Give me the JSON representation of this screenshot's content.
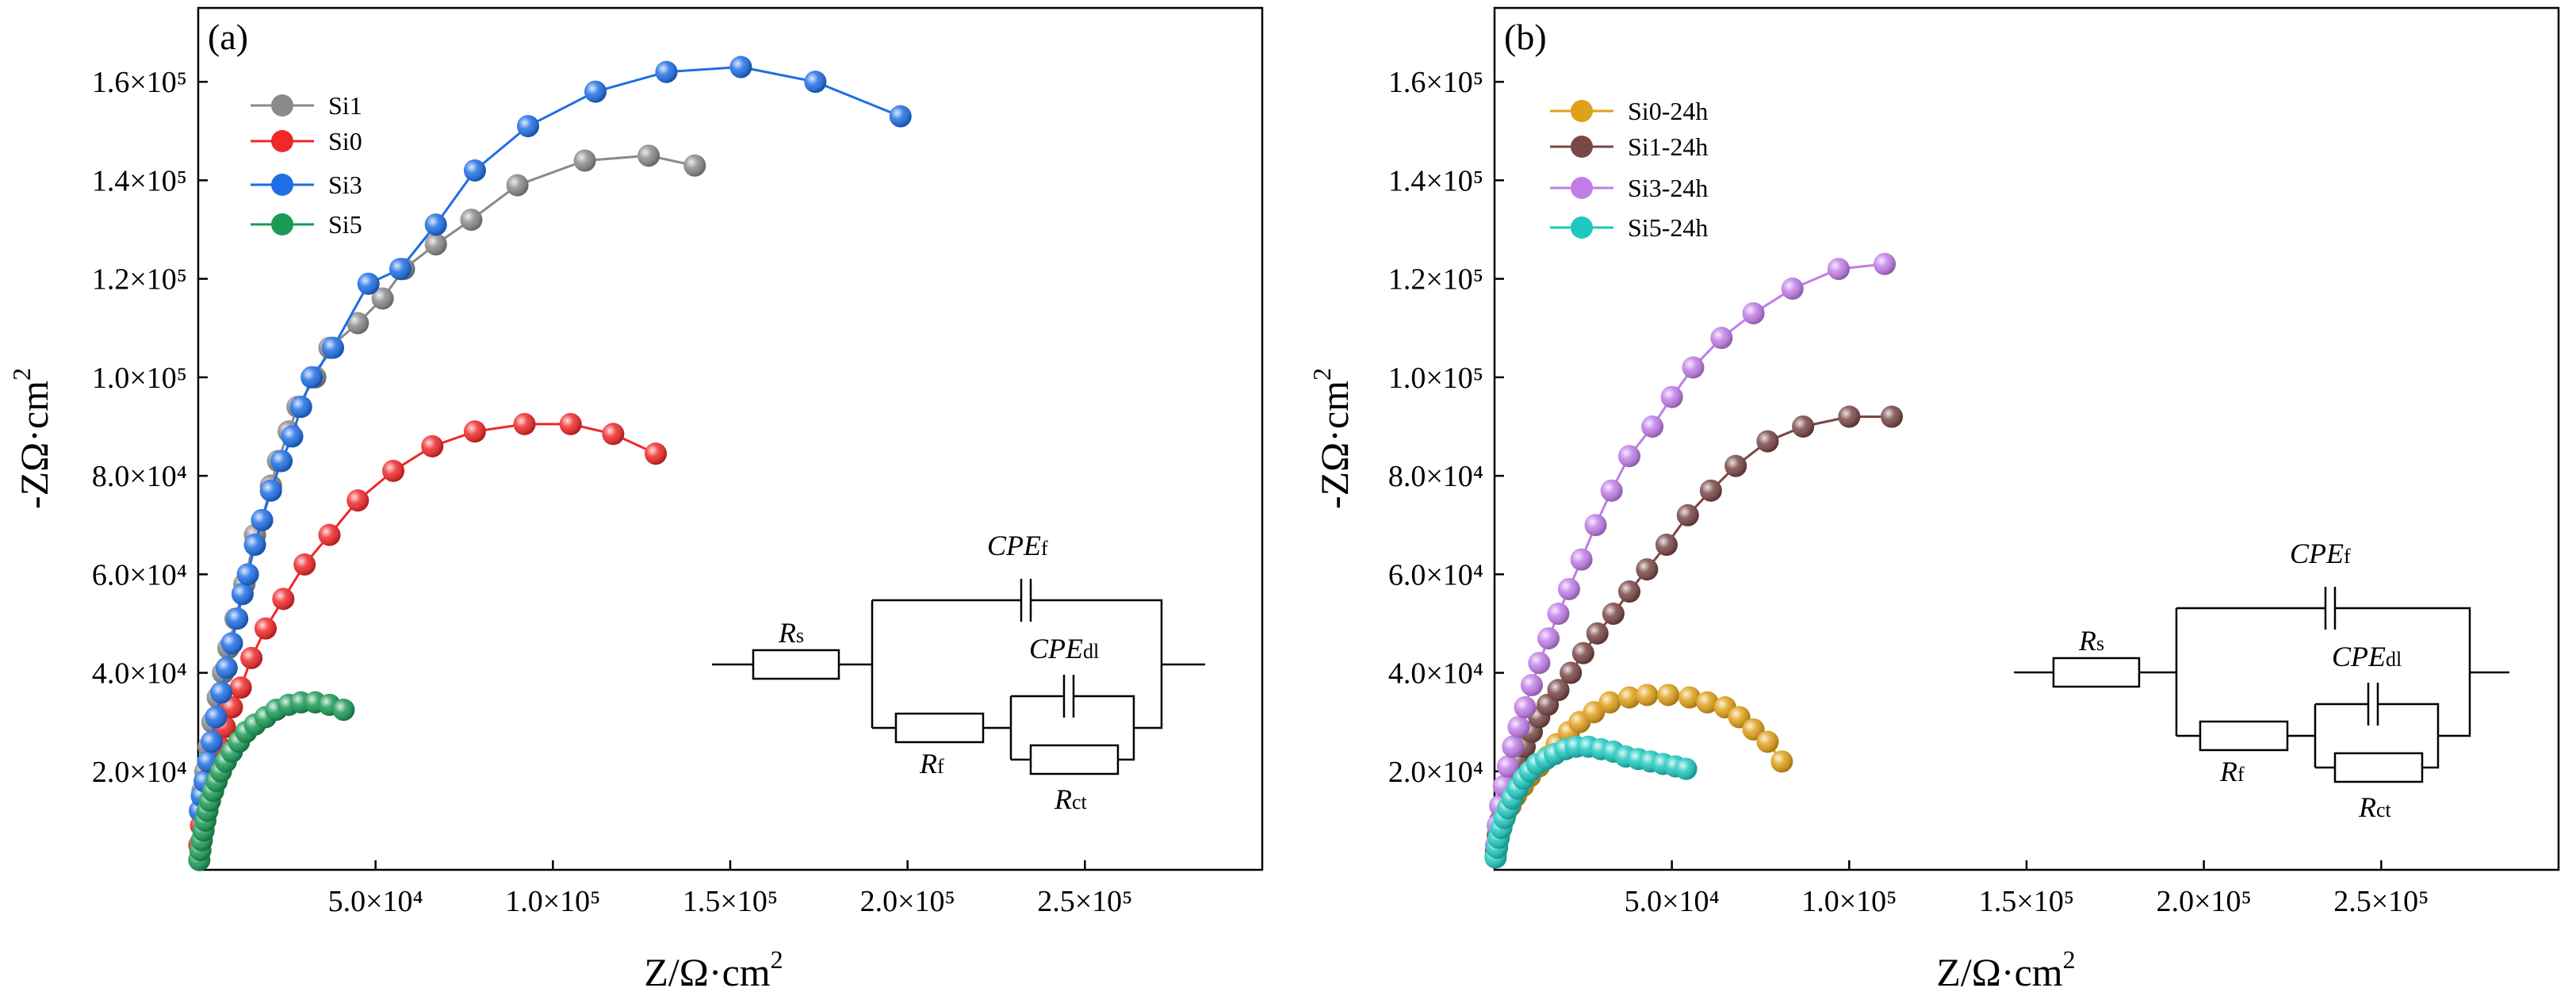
{
  "chart_data": [
    {
      "type": "scatter",
      "panel_label": "(a)",
      "xlabel": "Z/Ω·cm²",
      "ylabel": "-ZΩ·cm²",
      "xlim": [
        0,
        300000
      ],
      "ylim": [
        0,
        175000
      ],
      "xticks": [
        50000,
        100000,
        150000,
        200000,
        250000
      ],
      "xtick_labels": [
        "5.0×10⁴",
        "1.0×10⁵",
        "1.5×10⁵",
        "2.0×10⁵",
        "2.5×10⁵"
      ],
      "yticks": [
        20000,
        40000,
        60000,
        80000,
        100000,
        120000,
        140000,
        160000
      ],
      "ytick_labels": [
        "2.0×10⁴",
        "4.0×10⁴",
        "6.0×10⁴",
        "8.0×10⁴",
        "1.0×10⁵",
        "1.2×10⁵",
        "1.4×10⁵",
        "1.6×10⁵"
      ],
      "legend_position": "top-left",
      "series": [
        {
          "name": "Si1",
          "color": "#8a8a8a",
          "points": [
            [
              500,
              12000
            ],
            [
              1200,
              16000
            ],
            [
              2000,
              20000
            ],
            [
              3000,
              25000
            ],
            [
              4000,
              30000
            ],
            [
              5500,
              35000
            ],
            [
              7000,
              40000
            ],
            [
              8500,
              45000
            ],
            [
              10500,
              51000
            ],
            [
              13000,
              58000
            ],
            [
              16000,
              68000
            ],
            [
              18000,
              71000
            ],
            [
              20500,
              78000
            ],
            [
              22500,
              83000
            ],
            [
              25500,
              89000
            ],
            [
              28000,
              94000
            ],
            [
              33000,
              100000
            ],
            [
              37000,
              106000
            ],
            [
              45000,
              111000
            ],
            [
              52000,
              116000
            ],
            [
              58000,
              122000
            ],
            [
              67000,
              127000
            ],
            [
              77000,
              132000
            ],
            [
              90000,
              139000
            ],
            [
              109000,
              144000
            ],
            [
              127000,
              145000
            ],
            [
              140000,
              143000
            ]
          ]
        },
        {
          "name": "Si0",
          "color": "#f02828",
          "points": [
            [
              300,
              5000
            ],
            [
              800,
              9000
            ],
            [
              1500,
              13000
            ],
            [
              2500,
              16000
            ],
            [
              3500,
              19000
            ],
            [
              4500,
              22000
            ],
            [
              6000,
              25000
            ],
            [
              7500,
              29000
            ],
            [
              9500,
              33000
            ],
            [
              12000,
              37000
            ],
            [
              15000,
              43000
            ],
            [
              19000,
              49000
            ],
            [
              24000,
              55000
            ],
            [
              30000,
              62000
            ],
            [
              37000,
              68000
            ],
            [
              45000,
              75000
            ],
            [
              55000,
              81000
            ],
            [
              66000,
              86000
            ],
            [
              78000,
              89000
            ],
            [
              92000,
              90500
            ],
            [
              105000,
              90500
            ],
            [
              117000,
              88500
            ],
            [
              129000,
              84500
            ]
          ]
        },
        {
          "name": "Si3",
          "color": "#1e6ee6",
          "points": [
            [
              500,
              12000
            ],
            [
              1000,
              15000
            ],
            [
              1800,
              18000
            ],
            [
              2800,
              22000
            ],
            [
              3800,
              26000
            ],
            [
              5000,
              31000
            ],
            [
              6500,
              36000
            ],
            [
              8000,
              41000
            ],
            [
              9500,
              46000
            ],
            [
              11000,
              51000
            ],
            [
              12500,
              56000
            ],
            [
              14000,
              60000
            ],
            [
              16000,
              66000
            ],
            [
              18000,
              71000
            ],
            [
              20500,
              77000
            ],
            [
              23500,
              83000
            ],
            [
              26500,
              88000
            ],
            [
              29000,
              94000
            ],
            [
              32000,
              100000
            ],
            [
              38000,
              106000
            ],
            [
              48000,
              119000
            ],
            [
              57000,
              122000
            ],
            [
              67000,
              131000
            ],
            [
              78000,
              142000
            ],
            [
              93000,
              151000
            ],
            [
              112000,
              158000
            ],
            [
              132000,
              162000
            ],
            [
              153000,
              163000
            ],
            [
              174000,
              160000
            ],
            [
              198000,
              153000
            ]
          ]
        },
        {
          "name": "Si5",
          "color": "#1a9a55",
          "points": [
            [
              300,
              2000
            ],
            [
              600,
              4000
            ],
            [
              1000,
              6000
            ],
            [
              1500,
              8000
            ],
            [
              2000,
              10000
            ],
            [
              2600,
              12000
            ],
            [
              3300,
              14000
            ],
            [
              4200,
              16000
            ],
            [
              5200,
              18000
            ],
            [
              6400,
              20000
            ],
            [
              7800,
              22000
            ],
            [
              9500,
              24000
            ],
            [
              11500,
              26000
            ],
            [
              13500,
              28000
            ],
            [
              16000,
              29500
            ],
            [
              19000,
              31000
            ],
            [
              22000,
              32500
            ],
            [
              25500,
              33500
            ],
            [
              29000,
              34000
            ],
            [
              33000,
              34000
            ],
            [
              37000,
              33500
            ],
            [
              41000,
              32500
            ]
          ]
        }
      ],
      "circuit": {
        "rs": "R",
        "rs_sub": "s",
        "rf": "R",
        "rf_sub": "f",
        "rct": "R",
        "rct_sub": "ct",
        "cpef": "CPE",
        "cpef_sub": "f",
        "cpedl": "CPE",
        "cpedl_sub": "dl"
      }
    },
    {
      "type": "scatter",
      "panel_label": "(b)",
      "xlabel": "Z/Ω·cm²",
      "ylabel": "-ZΩ·cm²",
      "xlim": [
        0,
        300000
      ],
      "ylim": [
        0,
        175000
      ],
      "xticks": [
        50000,
        100000,
        150000,
        200000,
        250000
      ],
      "xtick_labels": [
        "5.0×10⁴",
        "1.0×10⁵",
        "1.5×10⁵",
        "2.0×10⁵",
        "2.5×10⁵"
      ],
      "yticks": [
        20000,
        40000,
        60000,
        80000,
        100000,
        120000,
        140000,
        160000
      ],
      "ytick_labels": [
        "2.0×10⁴",
        "4.0×10⁴",
        "6.0×10⁴",
        "8.0×10⁴",
        "1.0×10⁵",
        "1.2×10⁵",
        "1.4×10⁵",
        "1.6×10⁵"
      ],
      "legend_position": "top-left",
      "series": [
        {
          "name": "Si0-24h",
          "color": "#e0a018",
          "points": [
            [
              300,
              3000
            ],
            [
              700,
              5000
            ],
            [
              1200,
              7000
            ],
            [
              2000,
              9000
            ],
            [
              3000,
              11000
            ],
            [
              4500,
              13000
            ],
            [
              6000,
              15000
            ],
            [
              8000,
              17000
            ],
            [
              10000,
              19000
            ],
            [
              12500,
              21000
            ],
            [
              15000,
              23000
            ],
            [
              17500,
              25500
            ],
            [
              21000,
              28000
            ],
            [
              24000,
              30000
            ],
            [
              28000,
              32000
            ],
            [
              32500,
              34000
            ],
            [
              38000,
              35000
            ],
            [
              43000,
              35500
            ],
            [
              49000,
              35500
            ],
            [
              55000,
              35000
            ],
            [
              60000,
              34000
            ],
            [
              65000,
              33000
            ],
            [
              69000,
              31000
            ],
            [
              73000,
              28500
            ],
            [
              77000,
              26000
            ],
            [
              81000,
              22000
            ]
          ]
        },
        {
          "name": "Si1-24h",
          "color": "#7a4646",
          "points": [
            [
              400,
              4000
            ],
            [
              900,
              7000
            ],
            [
              1600,
              10000
            ],
            [
              2500,
              13000
            ],
            [
              3600,
              16000
            ],
            [
              5000,
              19000
            ],
            [
              6600,
              22000
            ],
            [
              8500,
              25000
            ],
            [
              10500,
              28000
            ],
            [
              12600,
              31000
            ],
            [
              15000,
              33500
            ],
            [
              18000,
              36500
            ],
            [
              21500,
              40000
            ],
            [
              25000,
              44000
            ],
            [
              29000,
              48000
            ],
            [
              33500,
              52000
            ],
            [
              38000,
              56500
            ],
            [
              43000,
              61000
            ],
            [
              48500,
              66000
            ],
            [
              54500,
              72000
            ],
            [
              61000,
              77000
            ],
            [
              68000,
              82000
            ],
            [
              77000,
              87000
            ],
            [
              87000,
              90000
            ],
            [
              100000,
              92000
            ],
            [
              112000,
              92000
            ]
          ]
        },
        {
          "name": "Si3-24h",
          "color": "#c07de8",
          "points": [
            [
              400,
              5000
            ],
            [
              900,
              9000
            ],
            [
              1600,
              13000
            ],
            [
              2600,
              17000
            ],
            [
              3800,
              21000
            ],
            [
              5200,
              25000
            ],
            [
              6800,
              29000
            ],
            [
              8600,
              33000
            ],
            [
              10500,
              37500
            ],
            [
              12600,
              42000
            ],
            [
              15200,
              47000
            ],
            [
              18000,
              52000
            ],
            [
              21000,
              57000
            ],
            [
              24500,
              63000
            ],
            [
              28500,
              70000
            ],
            [
              33000,
              77000
            ],
            [
              38000,
              84000
            ],
            [
              44500,
              90000
            ],
            [
              50000,
              96000
            ],
            [
              56000,
              102000
            ],
            [
              64000,
              108000
            ],
            [
              73000,
              113000
            ],
            [
              84000,
              118000
            ],
            [
              97000,
              122000
            ],
            [
              110000,
              123000
            ]
          ]
        },
        {
          "name": "Si5-24h",
          "color": "#1ec8c0",
          "points": [
            [
              300,
              2500
            ],
            [
              700,
              4500
            ],
            [
              1200,
              6500
            ],
            [
              1900,
              8500
            ],
            [
              2800,
              10500
            ],
            [
              3800,
              12500
            ],
            [
              5000,
              14500
            ],
            [
              6500,
              16500
            ],
            [
              8200,
              18500
            ],
            [
              10000,
              20000
            ],
            [
              12000,
              21500
            ],
            [
              14500,
              22500
            ],
            [
              17000,
              23500
            ],
            [
              20000,
              24500
            ],
            [
              23000,
              25000
            ],
            [
              26500,
              25000
            ],
            [
              30000,
              24500
            ],
            [
              33500,
              24000
            ],
            [
              37000,
              23000
            ],
            [
              40500,
              22500
            ],
            [
              44000,
              22000
            ],
            [
              47500,
              21500
            ],
            [
              51000,
              21000
            ],
            [
              54000,
              20500
            ]
          ]
        }
      ],
      "circuit": {
        "rs": "R",
        "rs_sub": "s",
        "rf": "R",
        "rf_sub": "f",
        "rct": "R",
        "rct_sub": "ct",
        "cpef": "CPE",
        "cpef_sub": "f",
        "cpedl": "CPE",
        "cpedl_sub": "dl"
      }
    }
  ]
}
